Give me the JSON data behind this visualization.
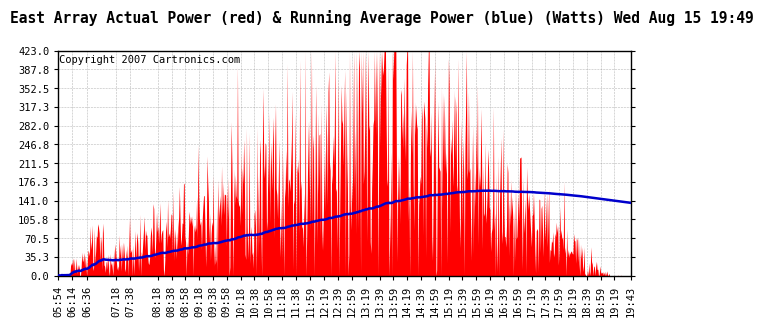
{
  "title": "East Array Actual Power (red) & Running Average Power (blue) (Watts) Wed Aug 15 19:49",
  "copyright": "Copyright 2007 Cartronics.com",
  "ylim": [
    0.0,
    423.0
  ],
  "yticks": [
    0.0,
    35.3,
    70.5,
    105.8,
    141.0,
    176.3,
    211.5,
    246.8,
    282.0,
    317.3,
    352.5,
    387.8,
    423.0
  ],
  "xtick_labels": [
    "05:54",
    "06:14",
    "06:36",
    "07:18",
    "07:38",
    "08:18",
    "08:38",
    "08:58",
    "09:18",
    "09:38",
    "09:58",
    "10:18",
    "10:38",
    "10:58",
    "11:18",
    "11:38",
    "11:59",
    "12:19",
    "12:39",
    "12:59",
    "13:19",
    "13:39",
    "13:59",
    "14:19",
    "14:39",
    "14:59",
    "15:19",
    "15:39",
    "15:59",
    "16:19",
    "16:39",
    "16:59",
    "17:19",
    "17:39",
    "17:59",
    "18:19",
    "18:39",
    "18:59",
    "19:19",
    "19:43"
  ],
  "actual_color": "#FF0000",
  "average_color": "#0000CC",
  "background_color": "#FFFFFF",
  "grid_color": "#888888",
  "title_fontsize": 10.5,
  "tick_fontsize": 7.5,
  "copyright_fontsize": 7.5
}
